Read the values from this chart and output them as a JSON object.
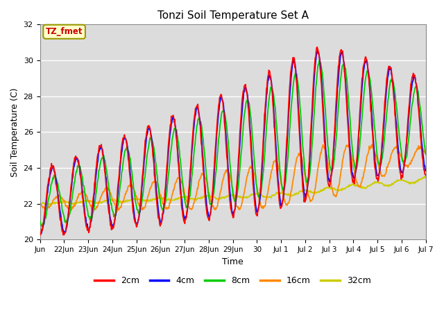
{
  "title": "Tonzi Soil Temperature Set A",
  "xlabel": "Time",
  "ylabel": "Soil Temperature (C)",
  "ylim": [
    20,
    32
  ],
  "yticks": [
    20,
    22,
    24,
    26,
    28,
    30,
    32
  ],
  "colors": {
    "2cm": "#ff0000",
    "4cm": "#0000ff",
    "8cm": "#00cc00",
    "16cm": "#ff8800",
    "32cm": "#cccc00"
  },
  "legend_label": "TZ_fmet",
  "background_color": "#dcdcdc",
  "grid_color": "#ffffff",
  "tick_labels": [
    "Jun",
    "22Jun",
    "23Jun",
    "24Jun",
    "25Jun",
    "26Jun",
    "27Jun",
    "28Jun",
    "29Jun",
    "30",
    "Jul 1",
    "Jul 2",
    "Jul 3",
    "Jul 4",
    "Jul 5",
    "Jul 6",
    "Jul 7"
  ]
}
